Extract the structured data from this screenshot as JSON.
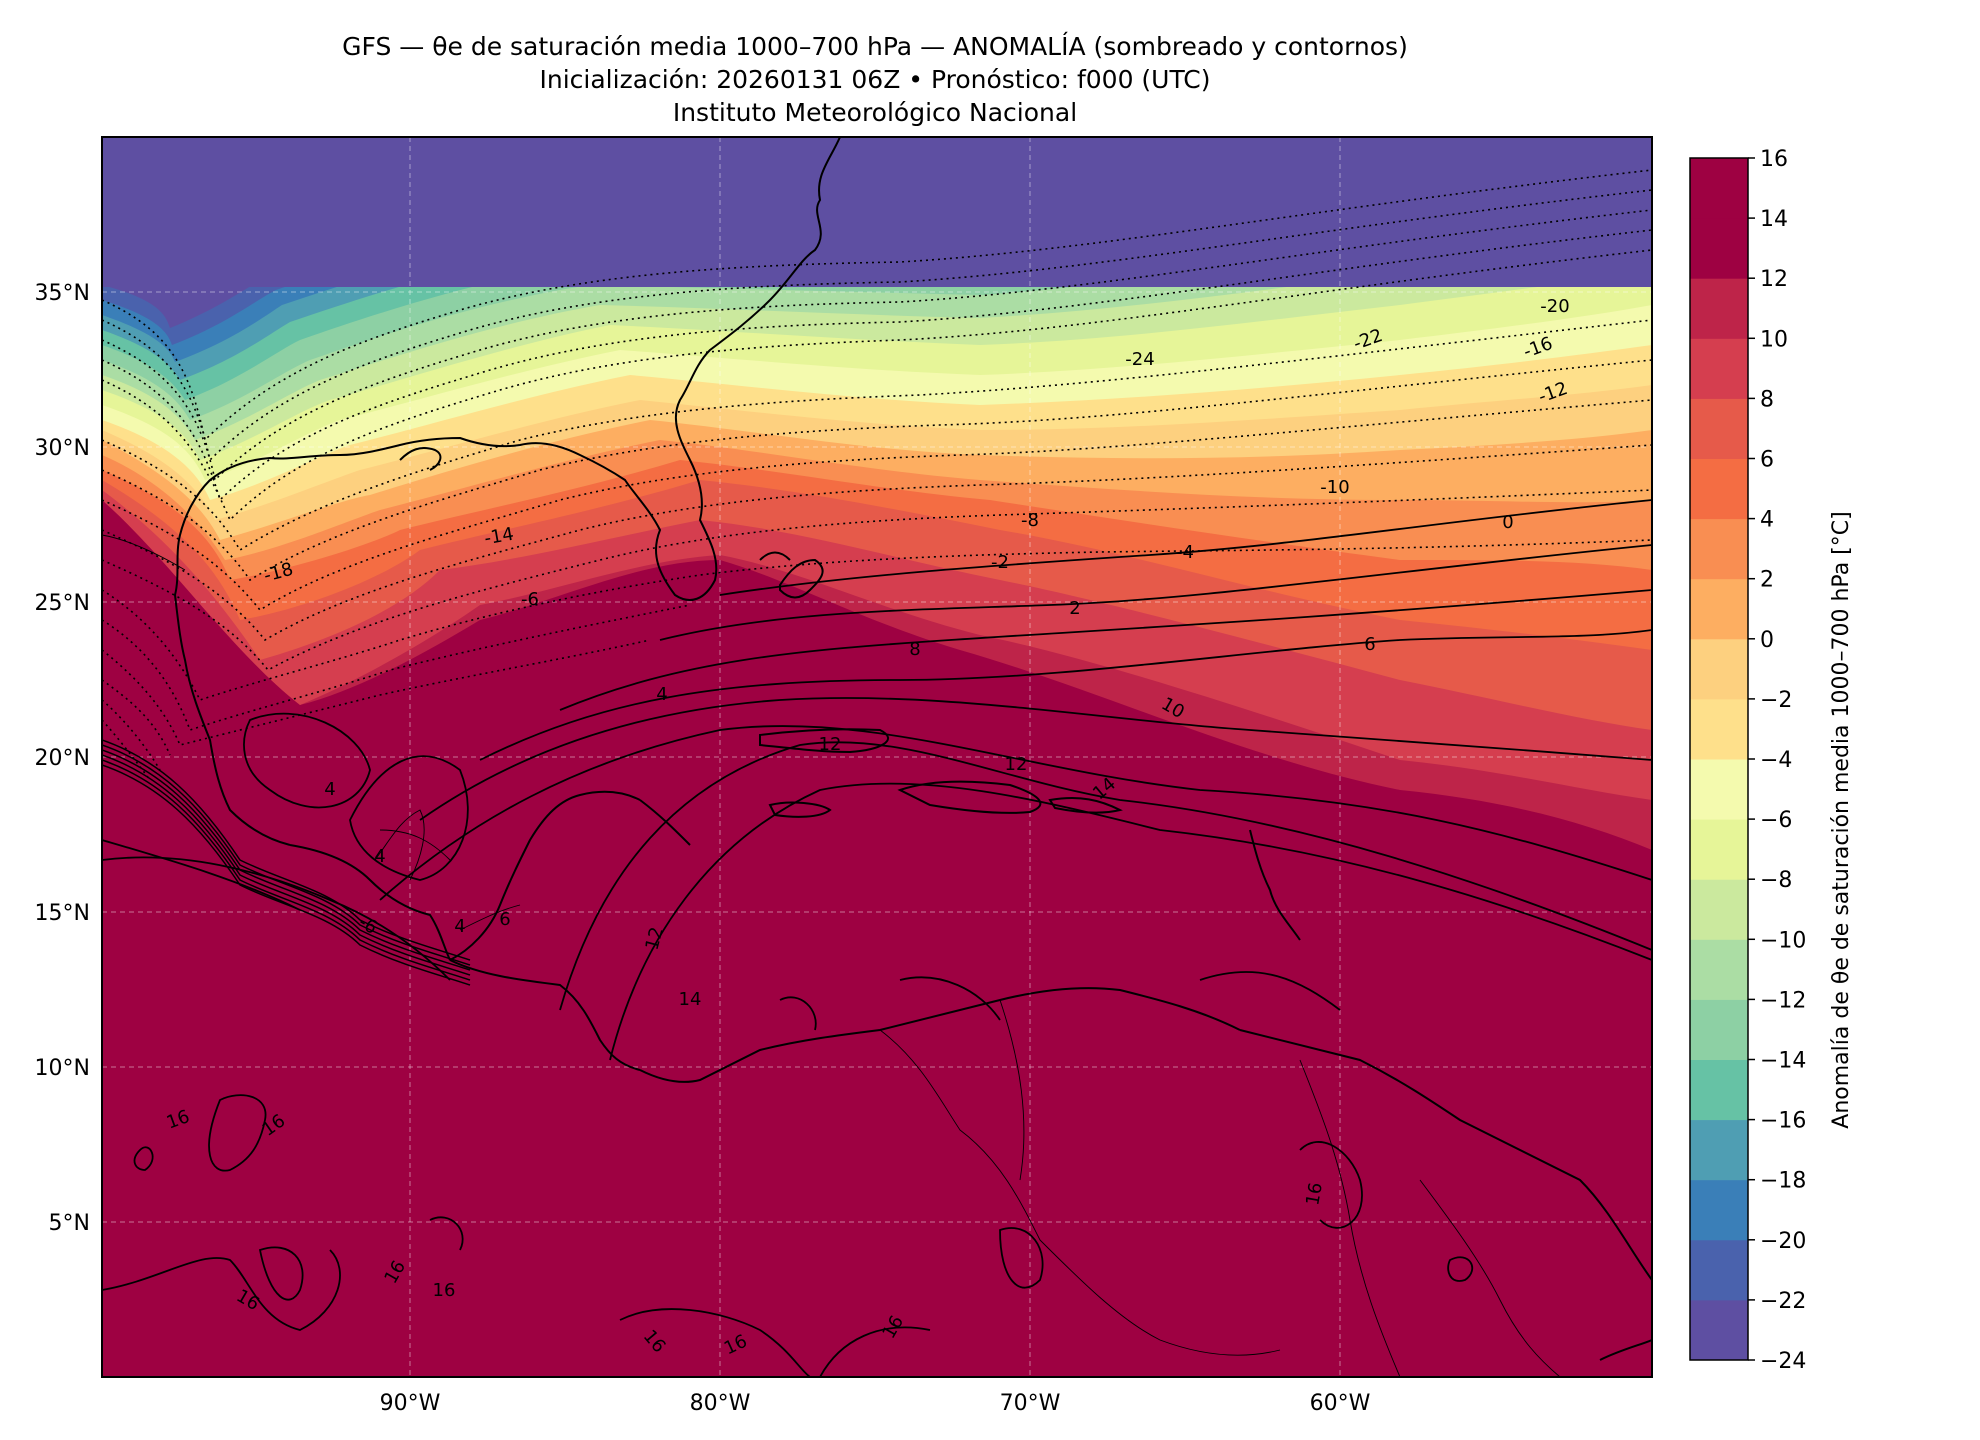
{
  "header": {
    "title_line1": "GFS — θe de saturación media 1000–700 hPa — ANOMALÍA (sombreado y contornos)",
    "title_line2": "Inicialización: 20260131 06Z   •   Pronóstico: f000 (UTC)",
    "title_line3": "Instituto Meteorológico Nacional"
  },
  "map": {
    "lat_ticks": [
      "35°N",
      "30°N",
      "25°N",
      "20°N",
      "15°N",
      "10°N",
      "5°N"
    ],
    "lon_ticks": [
      "90°W",
      "80°W",
      "70°W",
      "60°W"
    ],
    "contour_labels": [
      "-24",
      "-22",
      "-20",
      "-18",
      "-16",
      "-14",
      "-12",
      "-10",
      "-8",
      "-6",
      "-4",
      "-2",
      "0",
      "2",
      "4",
      "6",
      "8",
      "10",
      "12",
      "14",
      "16"
    ]
  },
  "colorbar": {
    "label": "Anomalía de θe de saturación media 1000–700 hPa [°C]",
    "ticks": [
      "−24",
      "−22",
      "−20",
      "−18",
      "−16",
      "−14",
      "−12",
      "−10",
      "−8",
      "−6",
      "−4",
      "−2",
      "0",
      "2",
      "4",
      "6",
      "8",
      "10",
      "12",
      "14",
      "16"
    ],
    "top_label": "16",
    "colors": [
      "#5e4fa2",
      "#4a62ad",
      "#3a7fb8",
      "#4f9eb3",
      "#66c2a5",
      "#8dd0a4",
      "#abdda4",
      "#cbe99e",
      "#e6f598",
      "#f4faae",
      "#fee08b",
      "#fdd07f",
      "#fdae61",
      "#f98e52",
      "#f46d43",
      "#e65a4a",
      "#d53e4f",
      "#be2449",
      "#9e0142"
    ]
  },
  "chart_data": {
    "type": "heatmap",
    "xlim": [
      "100°W",
      "50°W"
    ],
    "ylim": [
      "0°N",
      "40°N"
    ],
    "vmin": -24,
    "vmax": 16,
    "step": 2,
    "gridlines": true
  }
}
